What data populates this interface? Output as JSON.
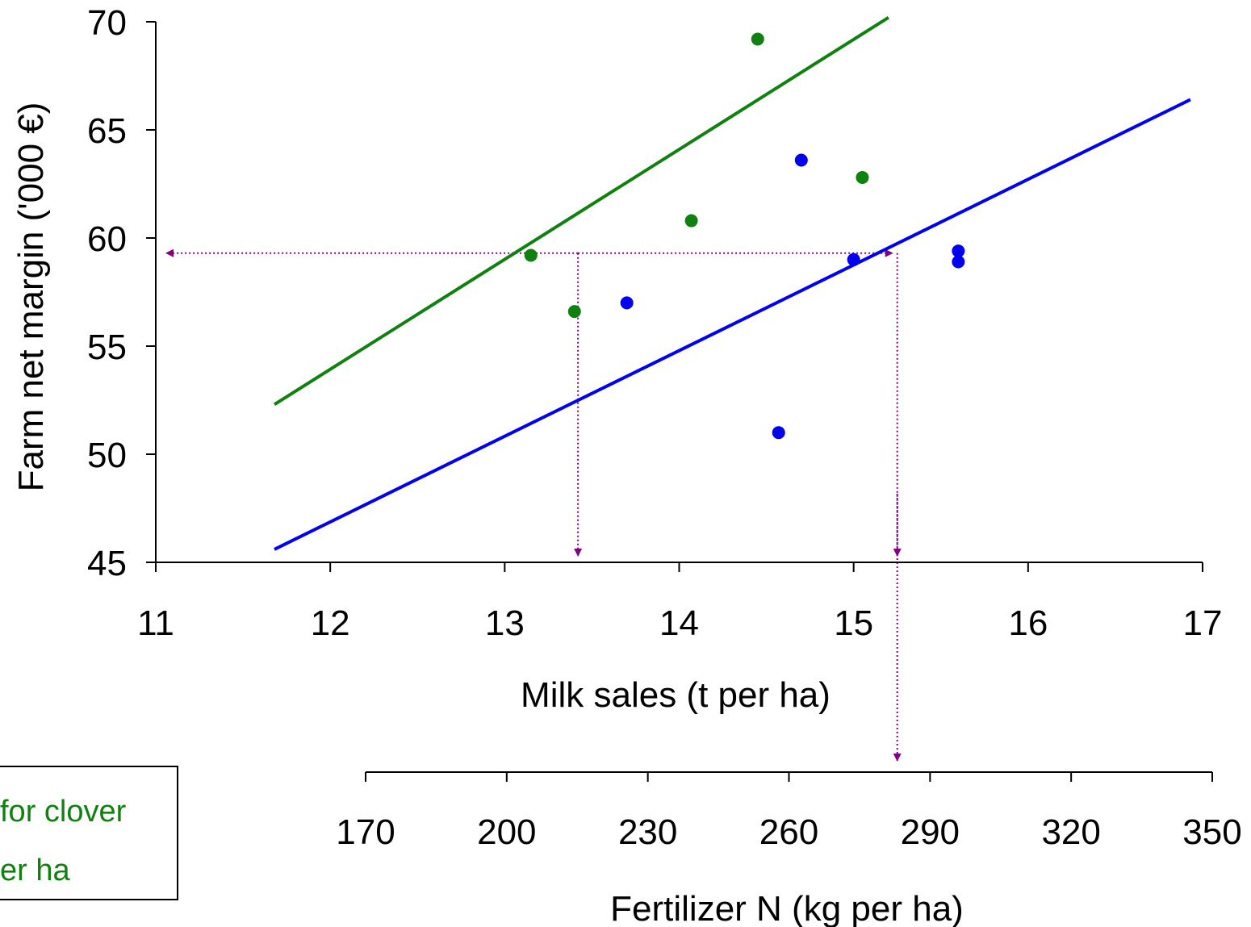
{
  "chart_data": {
    "type": "scatter",
    "xlabel": "Milk sales (t per ha)",
    "ylabel": "Farm net margin ('000 €)",
    "secondary_xlabel": "Fertilizer N (kg per ha)",
    "xlim": [
      11,
      17
    ],
    "ylim": [
      45,
      70
    ],
    "x_ticks": [
      "11",
      "12",
      "13",
      "14",
      "15",
      "16",
      "17"
    ],
    "y_ticks": [
      "45",
      "50",
      "55",
      "60",
      "65",
      "70"
    ],
    "secondary_xlim": [
      170,
      350
    ],
    "secondary_x_ticks": [
      "170",
      "200",
      "230",
      "260",
      "290",
      "320",
      "350"
    ],
    "series": [
      {
        "color": "#108010",
        "points": [
          [
            13.15,
            59.2
          ],
          [
            13.4,
            56.6
          ],
          [
            14.07,
            60.8
          ],
          [
            14.45,
            69.2
          ],
          [
            15.05,
            62.8
          ]
        ],
        "line": [
          [
            11.68,
            52.3
          ],
          [
            15.2,
            70.2
          ]
        ]
      },
      {
        "color": "#0000ee",
        "points": [
          [
            13.7,
            57.0
          ],
          [
            14.57,
            51.0
          ],
          [
            14.7,
            63.6
          ],
          [
            15.0,
            59.0
          ],
          [
            15.6,
            59.4
          ],
          [
            15.6,
            58.9
          ]
        ],
        "line": [
          [
            11.68,
            45.6
          ],
          [
            16.93,
            66.4
          ]
        ]
      }
    ],
    "reference_color": "#800080",
    "reference_level": 59.3,
    "reference_x": [
      13.42,
      15.25
    ],
    "legend": {
      "lines": [
        "for clover",
        "er ha"
      ],
      "color": "#108010",
      "placement": "bottom-left"
    }
  }
}
